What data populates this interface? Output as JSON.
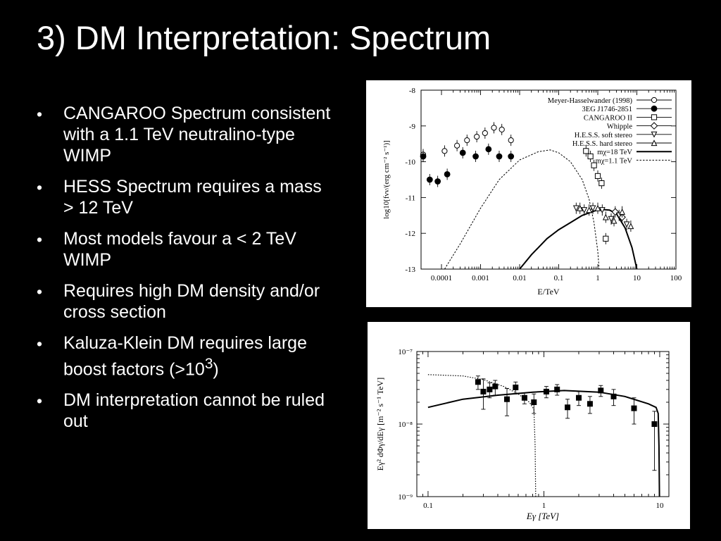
{
  "slide": {
    "title": "3) DM Interpretation: Spectrum",
    "bullets": [
      {
        "text": "CANGAROO Spectrum consistent with a 1.1 TeV neutralino-type WIMP"
      },
      {
        "text": "HESS Spectrum requires a mass  > 12 TeV"
      },
      {
        "text": "Most models favour a  < 2 TeV WIMP"
      },
      {
        "text": "Requires high DM density and/or cross section"
      },
      {
        "text": "Kaluza-Klein DM requires large boost factors (>10",
        "sup": "3",
        "after": ")"
      },
      {
        "text": "DM interpretation cannot be ruled out"
      }
    ]
  },
  "chart_data": [
    {
      "type": "scatter",
      "xlabel": "E/TeV",
      "ylabel": "log10[fνν/(erg cm⁻² s⁻¹)]",
      "x_scale": "log",
      "xlim": [
        3e-05,
        100
      ],
      "ylim": [
        -13,
        -8
      ],
      "x_ticks": [
        "0.0001",
        "0.001",
        "0.01",
        "0.1",
        "1",
        "10",
        "100"
      ],
      "y_ticks": [
        "-8",
        "-9",
        "-10",
        "-11",
        "-12",
        "-13"
      ],
      "legend_position": "top-right",
      "series": [
        {
          "name": "Meyer-Hasselwander (1998)",
          "marker": "open-circle",
          "points": [
            [
              3.4e-05,
              -9.8
            ],
            [
              0.00012,
              -9.7
            ],
            [
              0.00025,
              -9.55
            ],
            [
              0.00045,
              -9.4
            ],
            [
              0.0008,
              -9.3
            ],
            [
              0.0013,
              -9.2
            ],
            [
              0.0022,
              -9.05
            ],
            [
              0.0035,
              -9.1
            ],
            [
              0.006,
              -9.4
            ]
          ]
        },
        {
          "name": "3EG J1746-2851",
          "marker": "filled-circle",
          "points": [
            [
              3.4e-05,
              -9.85
            ],
            [
              5e-05,
              -10.5
            ],
            [
              8e-05,
              -10.55
            ],
            [
              0.00014,
              -10.35
            ],
            [
              0.00035,
              -9.75
            ],
            [
              0.00075,
              -9.85
            ],
            [
              0.0016,
              -9.65
            ],
            [
              0.003,
              -9.85
            ],
            [
              0.006,
              -9.85
            ]
          ]
        },
        {
          "name": "CANGAROO II",
          "marker": "open-square",
          "points": [
            [
              0.5,
              -9.7
            ],
            [
              0.65,
              -9.85
            ],
            [
              0.8,
              -10.1
            ],
            [
              1.0,
              -10.4
            ],
            [
              1.25,
              -10.6
            ],
            [
              1.6,
              -12.15
            ]
          ]
        },
        {
          "name": "Whipple",
          "marker": "open-diamond",
          "points": [
            [
              2.8,
              -11.4
            ],
            [
              4.2,
              -11.55
            ]
          ]
        },
        {
          "name": "H.E.S.S. soft stereo",
          "marker": "open-triangle-down",
          "points": [
            [
              0.28,
              -11.3
            ],
            [
              0.45,
              -11.35
            ],
            [
              0.75,
              -11.3
            ],
            [
              1.3,
              -11.35
            ],
            [
              2.2,
              -11.6
            ],
            [
              3.5,
              -11.5
            ],
            [
              5.5,
              -11.75
            ]
          ]
        },
        {
          "name": "H.E.S.S. hard stereo",
          "marker": "open-triangle-up",
          "points": [
            [
              0.35,
              -11.3
            ],
            [
              0.6,
              -11.35
            ],
            [
              1.0,
              -11.3
            ],
            [
              1.6,
              -11.55
            ],
            [
              2.6,
              -11.65
            ],
            [
              4.2,
              -11.4
            ],
            [
              7.0,
              -11.8
            ]
          ]
        },
        {
          "name": "mχ=18 TeV",
          "style": "solid-line",
          "points": [
            [
              0.01,
              -13.0
            ],
            [
              0.02,
              -12.6
            ],
            [
              0.05,
              -12.15
            ],
            [
              0.1,
              -11.9
            ],
            [
              0.2,
              -11.7
            ],
            [
              0.4,
              -11.5
            ],
            [
              0.8,
              -11.38
            ],
            [
              1.2,
              -11.33
            ],
            [
              2.0,
              -11.35
            ],
            [
              3.0,
              -11.45
            ],
            [
              5.0,
              -11.85
            ],
            [
              7.5,
              -12.4
            ],
            [
              10.0,
              -13.0
            ]
          ]
        },
        {
          "name": "mχ=1.1 TeV",
          "style": "dashed-line",
          "points": [
            [
              0.00012,
              -13.0
            ],
            [
              0.0003,
              -12.3
            ],
            [
              0.001,
              -11.3
            ],
            [
              0.003,
              -10.5
            ],
            [
              0.01,
              -9.95
            ],
            [
              0.03,
              -9.72
            ],
            [
              0.06,
              -9.67
            ],
            [
              0.1,
              -9.75
            ],
            [
              0.2,
              -10.0
            ],
            [
              0.4,
              -10.5
            ],
            [
              0.6,
              -11.05
            ],
            [
              0.8,
              -11.7
            ],
            [
              1.0,
              -12.5
            ],
            [
              1.08,
              -13.0
            ]
          ]
        }
      ]
    },
    {
      "type": "scatter",
      "xlabel": "Eγ [TeV]",
      "ylabel": "Eγ² dΦγ/dEγ [m⁻² s⁻¹ TeV]",
      "x_scale": "log",
      "y_scale": "log",
      "xlim": [
        0.08,
        12
      ],
      "ylim": [
        1e-09,
        1e-07
      ],
      "x_ticks": [
        "0.1",
        "1",
        "10"
      ],
      "y_ticks": [
        "10⁻⁷",
        "10⁻⁸",
        "10⁻⁹"
      ],
      "series": [
        {
          "name": "",
          "marker": "filled-square",
          "points": [
            [
              0.27,
              3.8e-08
            ],
            [
              0.3,
              2.8e-08
            ],
            [
              0.34,
              3e-08
            ],
            [
              0.38,
              3.3e-08
            ],
            [
              0.48,
              2.2e-08
            ],
            [
              0.57,
              3.2e-08
            ],
            [
              0.68,
              2.3e-08
            ],
            [
              0.82,
              2e-08
            ],
            [
              1.05,
              2.8e-08
            ],
            [
              1.3,
              3e-08
            ],
            [
              1.6,
              1.7e-08
            ],
            [
              2.0,
              2.3e-08
            ],
            [
              2.5,
              1.9e-08
            ],
            [
              3.1,
              2.9e-08
            ],
            [
              4.0,
              2.4e-08
            ],
            [
              6.0,
              1.65e-08
            ],
            [
              9.0,
              1e-08
            ]
          ],
          "error_low": [
            3e-08,
            1.6e-08,
            2.3e-08,
            2.5e-08,
            1.3e-08,
            2.6e-08,
            1.9e-08,
            1.4e-08,
            2.3e-08,
            2.5e-08,
            1.2e-08,
            1.8e-08,
            1.4e-08,
            2.4e-08,
            1.8e-08,
            1e-08,
            2.3e-09
          ],
          "error_high": [
            4.6e-08,
            4.2e-08,
            3.7e-08,
            4e-08,
            3.1e-08,
            3.8e-08,
            2.7e-08,
            2.6e-08,
            3.3e-08,
            3.5e-08,
            2.2e-08,
            2.8e-08,
            2.4e-08,
            3.4e-08,
            3e-08,
            2.3e-08,
            1.5e-08
          ]
        },
        {
          "name": "",
          "style": "solid-line",
          "points": [
            [
              0.1,
              1.7e-08
            ],
            [
              0.2,
              2.2e-08
            ],
            [
              0.4,
              2.5e-08
            ],
            [
              0.8,
              2.75e-08
            ],
            [
              1.5,
              2.9e-08
            ],
            [
              3,
              2.75e-08
            ],
            [
              5,
              2.4e-08
            ],
            [
              8,
              1.9e-08
            ],
            [
              9.3,
              1.7e-08
            ],
            [
              9.7,
              1.4e-08
            ],
            [
              9.85,
              5e-09
            ],
            [
              9.95,
              1e-09
            ]
          ]
        },
        {
          "name": "",
          "style": "dotted-line",
          "points": [
            [
              0.1,
              4.8e-08
            ],
            [
              0.2,
              4.6e-08
            ],
            [
              0.3,
              4.1e-08
            ],
            [
              0.45,
              3.3e-08
            ],
            [
              0.6,
              2.6e-08
            ],
            [
              0.75,
              2e-08
            ],
            [
              0.82,
              1.6e-08
            ],
            [
              0.84,
              5e-09
            ],
            [
              0.85,
              1e-09
            ]
          ]
        }
      ]
    }
  ]
}
